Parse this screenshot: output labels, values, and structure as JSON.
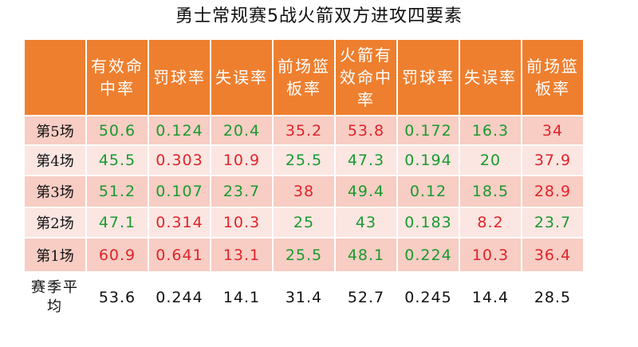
{
  "title": "勇士常规赛5战火箭双方进攻四要素",
  "colors": {
    "header": "#ee7f2f",
    "row_dark": "#f7cdc4",
    "row_light": "#fbe6e2",
    "good": "#1a9a2e",
    "bad": "#e2232a"
  },
  "headers": [
    "有效命中率",
    "罚球率",
    "失误率",
    "前场篮板率",
    "火箭有效命中率",
    "罚球率",
    "失误率",
    "前场篮板率"
  ],
  "rows": [
    {
      "label": "第5场",
      "values": [
        "50.6",
        "0.124",
        "20.4",
        "35.2",
        "53.8",
        "0.172",
        "16.3",
        "34"
      ],
      "colors": [
        "g",
        "g",
        "g",
        "r",
        "r",
        "g",
        "g",
        "r"
      ]
    },
    {
      "label": "第4场",
      "values": [
        "45.5",
        "0.303",
        "10.9",
        "25.5",
        "47.3",
        "0.194",
        "20",
        "37.9"
      ],
      "colors": [
        "g",
        "r",
        "r",
        "g",
        "g",
        "g",
        "g",
        "r"
      ]
    },
    {
      "label": "第3场",
      "values": [
        "51.2",
        "0.107",
        "23.7",
        "38",
        "49.4",
        "0.12",
        "18.5",
        "28.9"
      ],
      "colors": [
        "g",
        "g",
        "g",
        "r",
        "g",
        "g",
        "g",
        "r"
      ]
    },
    {
      "label": "第2场",
      "values": [
        "47.1",
        "0.314",
        "10.3",
        "25",
        "43",
        "0.183",
        "8.2",
        "23.7"
      ],
      "colors": [
        "g",
        "r",
        "r",
        "g",
        "g",
        "g",
        "r",
        "g"
      ]
    },
    {
      "label": "第1场",
      "values": [
        "60.9",
        "0.641",
        "13.1",
        "25.5",
        "48.1",
        "0.224",
        "10.3",
        "36.4"
      ],
      "colors": [
        "r",
        "r",
        "r",
        "g",
        "g",
        "g",
        "r",
        "r"
      ]
    }
  ],
  "average": {
    "label": "赛季平均",
    "values": [
      "53.6",
      "0.244",
      "14.1",
      "31.4",
      "52.7",
      "0.245",
      "14.4",
      "28.5"
    ]
  }
}
